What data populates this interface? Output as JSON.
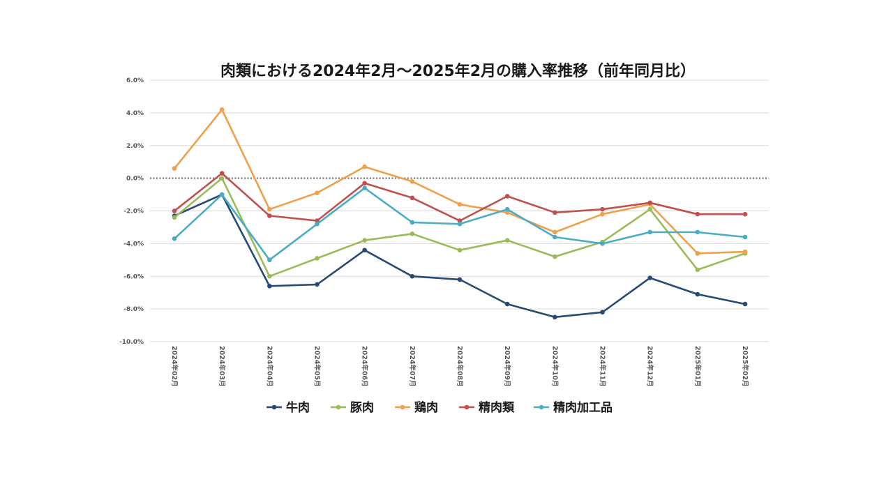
{
  "chart_data": {
    "type": "line",
    "title": "肉類における2024年2月～2025年2月の購入率推移（前年同月比）",
    "xlabel": "",
    "ylabel": "",
    "categories": [
      "2024年02月",
      "2024年03月",
      "2024年04月",
      "2024年05月",
      "2024年06月",
      "2024年07月",
      "2024年08月",
      "2024年09月",
      "2024年10月",
      "2024年11月",
      "2024年12月",
      "2025年01月",
      "2025年02月"
    ],
    "ylim": [
      -10.0,
      6.0
    ],
    "yticks": [
      "6.0%",
      "4.0%",
      "2.0%",
      "0.0%",
      "-2.0%",
      "-4.0%",
      "-6.0%",
      "-8.0%",
      "-10.0%"
    ],
    "grid": true,
    "zero_line": "dotted",
    "legend_position": "bottom",
    "series": [
      {
        "name": "牛肉",
        "color": "#264a73",
        "values": [
          -2.3,
          -1.0,
          -6.6,
          -6.5,
          -4.4,
          -6.0,
          -6.2,
          -7.7,
          -8.5,
          -8.2,
          -6.1,
          -7.1,
          -7.7
        ]
      },
      {
        "name": "豚肉",
        "color": "#9bbb59",
        "values": [
          -2.4,
          0.0,
          -6.0,
          -4.9,
          -3.8,
          -3.4,
          -4.4,
          -3.8,
          -4.8,
          -3.9,
          -1.9,
          -5.6,
          -4.6
        ]
      },
      {
        "name": "鶏肉",
        "color": "#f0a04b",
        "values": [
          0.6,
          4.2,
          -1.9,
          -0.9,
          0.7,
          -0.2,
          -1.6,
          -2.1,
          -3.3,
          -2.2,
          -1.6,
          -4.6,
          -4.5
        ]
      },
      {
        "name": "精肉類",
        "color": "#c0504d",
        "values": [
          -2.0,
          0.3,
          -2.3,
          -2.6,
          -0.3,
          -1.2,
          -2.6,
          -1.1,
          -2.1,
          -1.9,
          -1.5,
          -2.2,
          -2.2
        ]
      },
      {
        "name": "精肉加工品",
        "color": "#4bacc6",
        "values": [
          -3.7,
          -1.0,
          -5.0,
          -2.8,
          -0.6,
          -2.7,
          -2.8,
          -1.9,
          -3.6,
          -4.0,
          -3.3,
          -3.3,
          -3.6
        ]
      }
    ]
  }
}
